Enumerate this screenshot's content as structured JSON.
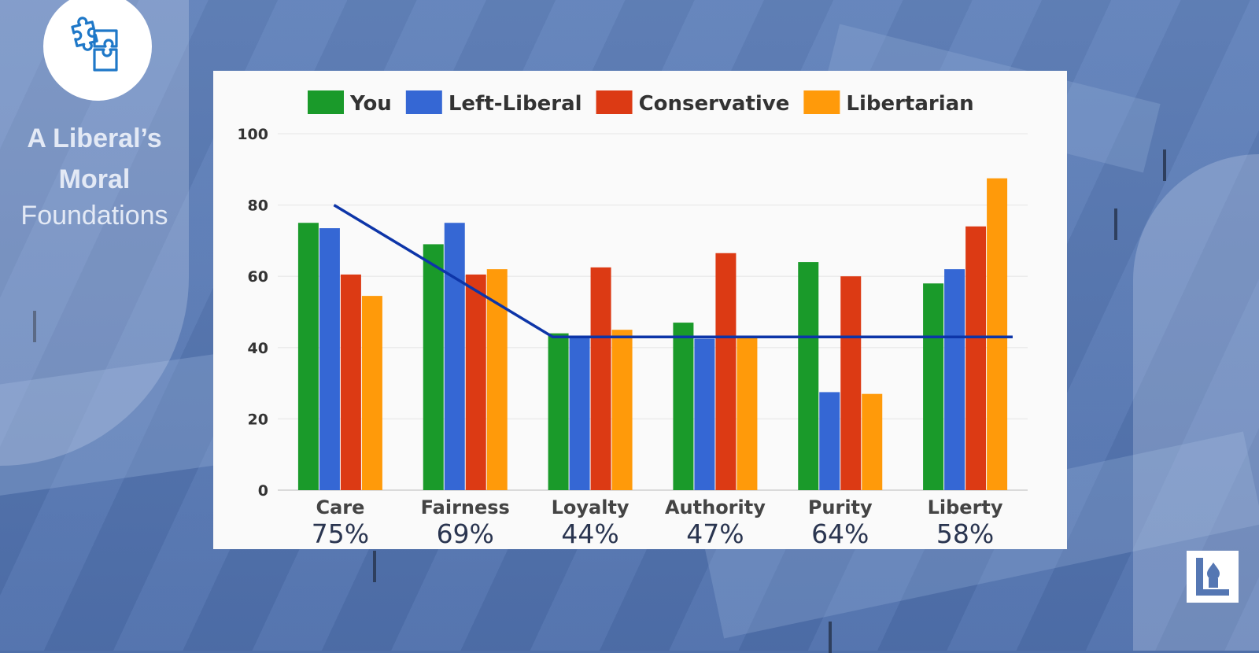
{
  "slide": {
    "title_line1": "A Liberal’s",
    "title_line2": "Moral",
    "title_line3": "Foundations"
  },
  "icons": {
    "badge": "puzzle-pieces-icon",
    "logo": "brand-logo-icon"
  },
  "colors": {
    "you": "#1a9a2a",
    "left_liberal": "#3567d4",
    "conservative": "#dc3a14",
    "libertarian": "#ff9a0a",
    "trend_line": "#0d35a8",
    "badge_icon": "#1f78c8"
  },
  "chart_data": {
    "type": "bar",
    "categories": [
      "Care",
      "Fairness",
      "Loyalty",
      "Authority",
      "Purity",
      "Liberty"
    ],
    "series": [
      {
        "name": "You",
        "key": "you",
        "values": [
          75,
          69,
          44,
          47,
          64,
          58
        ]
      },
      {
        "name": "Left-Liberal",
        "key": "left_liberal",
        "values": [
          73.5,
          75,
          43,
          42.5,
          27.5,
          62
        ]
      },
      {
        "name": "Conservative",
        "key": "conservative",
        "values": [
          60.5,
          60.5,
          62.5,
          66.5,
          60,
          74
        ]
      },
      {
        "name": "Libertarian",
        "key": "libertarian",
        "values": [
          54.5,
          62,
          45,
          43,
          27,
          87.5
        ]
      }
    ],
    "percent_labels": [
      "75%",
      "69%",
      "44%",
      "47%",
      "64%",
      "58%"
    ],
    "ylim": [
      0,
      100
    ],
    "yticks": [
      0,
      20,
      40,
      60,
      80,
      100
    ],
    "ytick_labels": [
      "0",
      "20",
      "40",
      "60",
      "80",
      "100"
    ],
    "grid": true,
    "legend_position": "top",
    "trend_line": {
      "type": "line",
      "points": [
        [
          -0.05,
          80
        ],
        [
          1.7,
          43
        ],
        [
          5.38,
          43
        ]
      ]
    }
  }
}
